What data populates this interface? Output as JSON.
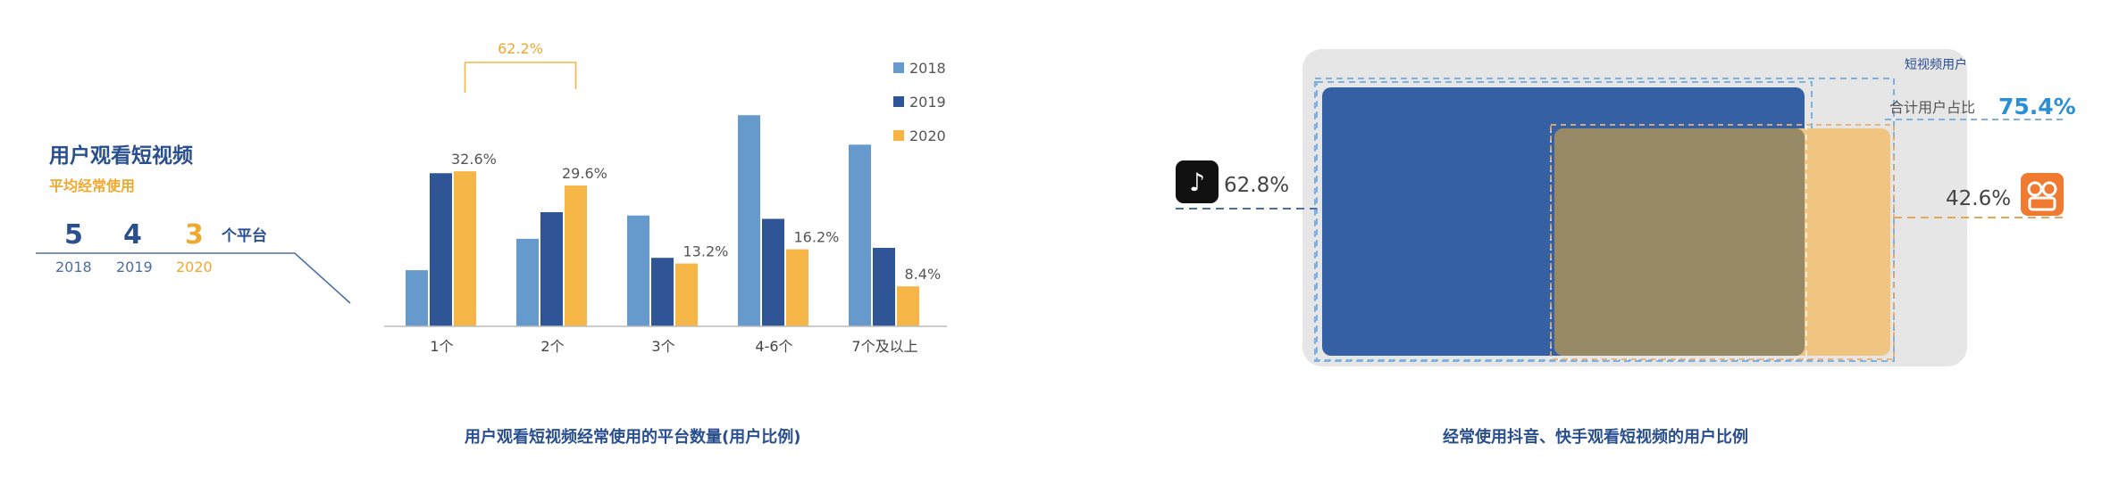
{
  "info": {
    "title": "用户观看短视频",
    "subtitle": "平均经常使用",
    "counts": [
      {
        "value": "5",
        "year": "2018",
        "color": "#2a4f8f"
      },
      {
        "value": "4",
        "year": "2019",
        "color": "#2a4f8f"
      },
      {
        "value": "3",
        "year": "2020",
        "color": "#f0a92e"
      }
    ],
    "unit": "个平台"
  },
  "chart_data": [
    {
      "type": "bar",
      "caption": "用户观看短视频经常使用的平台数量(用户比例)",
      "categories": [
        "1个",
        "2个",
        "3个",
        "4-6个",
        "7个及以上"
      ],
      "series": [
        {
          "name": "2018",
          "color": "#6699cc",
          "values": [
            11.8,
            18.4,
            23.3,
            44.4,
            38.2
          ]
        },
        {
          "name": "2019",
          "color": "#2f5597",
          "values": [
            32.2,
            24.0,
            14.4,
            22.6,
            16.5
          ]
        },
        {
          "name": "2020",
          "color": "#f5b547",
          "values": [
            32.6,
            29.6,
            13.2,
            16.2,
            8.4
          ]
        }
      ],
      "data_labels": [
        "32.6%",
        "29.6%",
        "13.2%",
        "16.2%",
        "8.4%"
      ],
      "bracket_label": "62.2%",
      "ylim": [
        0,
        48
      ],
      "legend_position": "top-right"
    },
    {
      "type": "area",
      "caption": "经常使用抖音、快手观看短视频的用户比例",
      "total_label": "短视频用户",
      "combined_prefix": "合计用户占比",
      "combined_value": "75.4%",
      "douyin_value": "62.8%",
      "kuaishou_value": "42.6%",
      "colors": {
        "douyin": "#3560a4",
        "kuaishou": "#f0c481",
        "overlap": "#978866",
        "total_bg": "#e6e6e6",
        "accent": "#2a8fd6"
      }
    }
  ]
}
